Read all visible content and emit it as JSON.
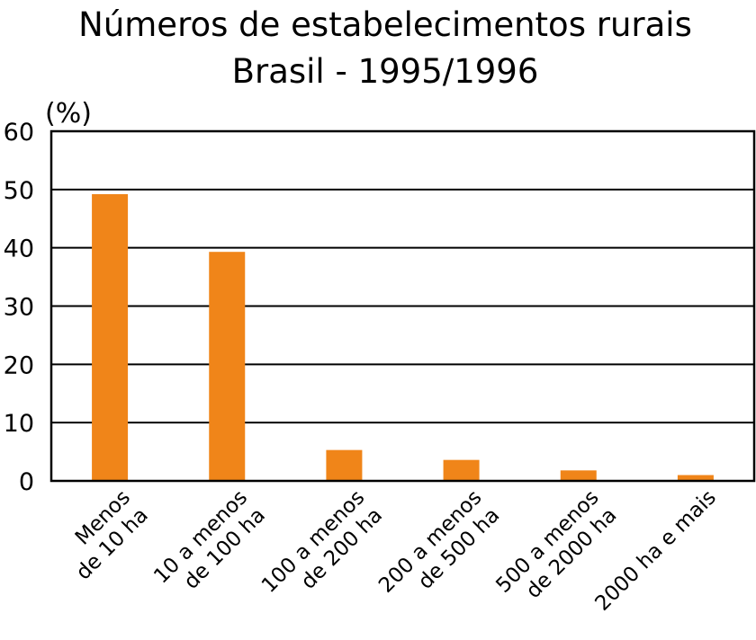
{
  "chart_data": {
    "type": "bar",
    "title": "Números de estabelecimentos rurais",
    "subtitle": "Brasil - 1995/1996",
    "ylabel": "(%)",
    "xlabel": "",
    "ylim": [
      0,
      60
    ],
    "yticks": [
      0,
      10,
      20,
      30,
      40,
      50,
      60
    ],
    "grid": true,
    "categories": [
      [
        "Menos",
        "de 10 ha"
      ],
      [
        "10 a menos",
        "de 100 ha"
      ],
      [
        "100 a menos",
        "de 200 ha"
      ],
      [
        "200 a menos",
        "de 500 ha"
      ],
      [
        "500 a menos",
        "de 2000 ha"
      ],
      [
        "2000 ha e mais"
      ]
    ],
    "values": [
      49.2,
      39.3,
      5.3,
      3.6,
      1.8,
      1.0
    ],
    "bar_color": "#f08519"
  }
}
